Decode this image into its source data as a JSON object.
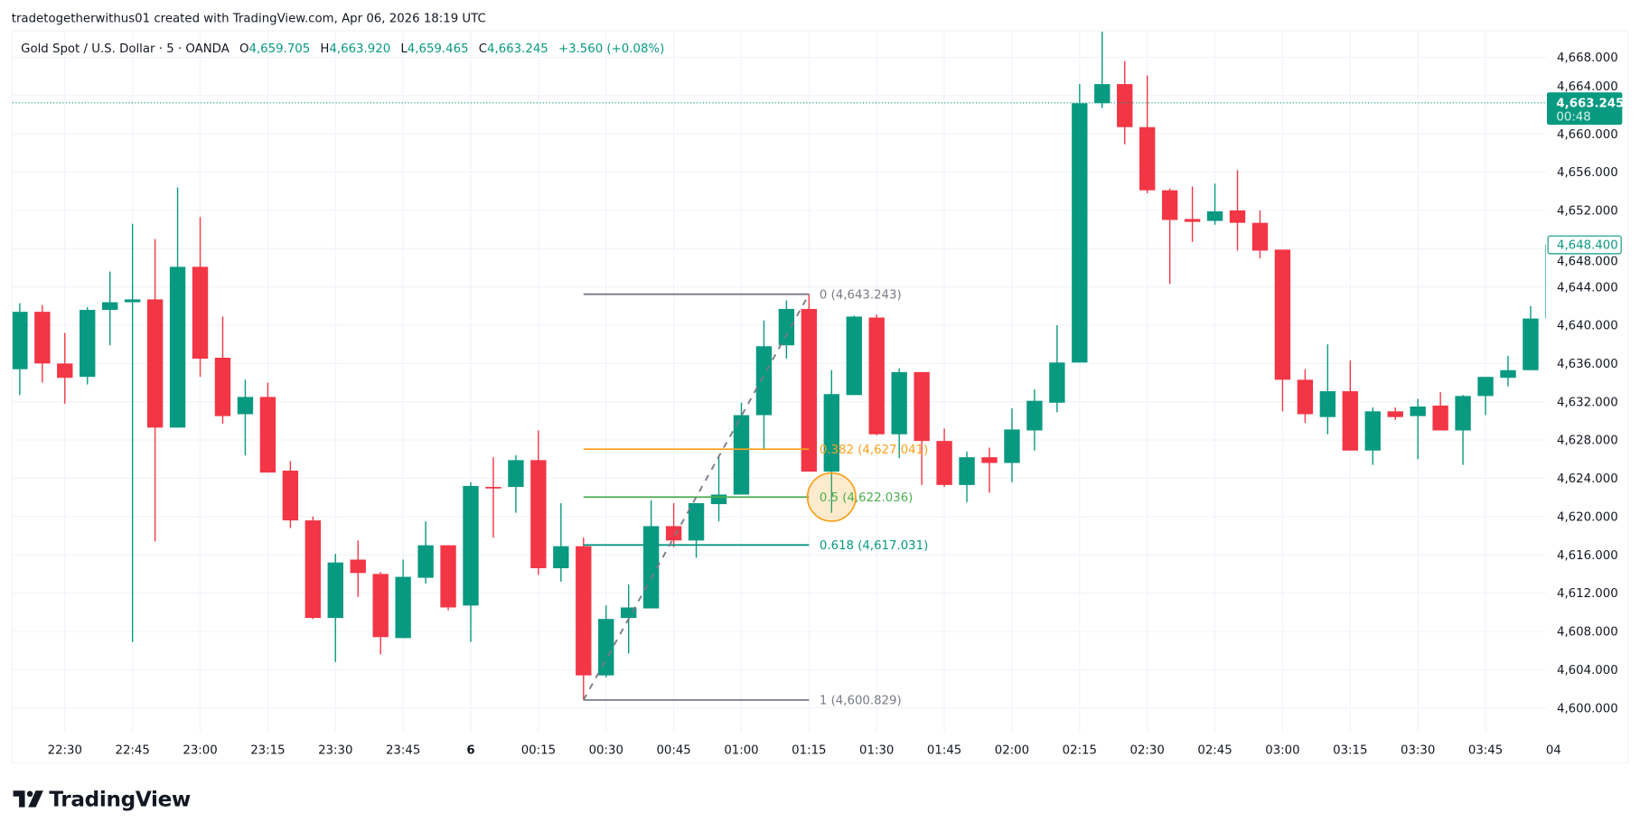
{
  "credit": "tradetogetherwithus01 created with TradingView.com, Apr 06, 2026 18:19 UTC",
  "legend": {
    "symbol": "Gold Spot / U.S. Dollar · 5 · OANDA",
    "open_label": "O",
    "open": "4,659.705",
    "high_label": "H",
    "high": "4,663.920",
    "low_label": "L",
    "low": "4,659.465",
    "close_label": "C",
    "close": "4,663.245",
    "change": "+3.560 (+0.08%)"
  },
  "logo": {
    "text": "TradingView",
    "icon": "tradingview-logo-icon"
  },
  "colors": {
    "up": "#089981",
    "down": "#f23645",
    "grid": "#f0f3fa",
    "fib_0": "#787b86",
    "fib_0382": "#f7a21b",
    "fib_05": "#4caf50",
    "fib_0618": "#089981",
    "fib_1": "#787b86",
    "highlight": "#f7a21b"
  },
  "chart_data": {
    "type": "candlestick",
    "symbol": "XAUUSD",
    "interval": "5",
    "ylim": [
      4597,
      4672
    ],
    "grid": true,
    "price_ticks": [
      "4,600.000",
      "4,604.000",
      "4,608.000",
      "4,612.000",
      "4,616.000",
      "4,620.000",
      "4,624.000",
      "4,628.000",
      "4,632.000",
      "4,636.000",
      "4,640.000",
      "4,644.000",
      "4,648.000",
      "4,652.000",
      "4,656.000",
      "4,660.000",
      "4,664.000",
      "4,668.000"
    ],
    "time_ticks": [
      {
        "label": "22:30",
        "time": "22:30"
      },
      {
        "label": "22:45",
        "time": "22:45"
      },
      {
        "label": "23:00",
        "time": "23:00"
      },
      {
        "label": "23:15",
        "time": "23:15"
      },
      {
        "label": "23:30",
        "time": "23:30"
      },
      {
        "label": "23:45",
        "time": "23:45"
      },
      {
        "label": "6",
        "time": "00:00"
      },
      {
        "label": "00:15",
        "time": "00:15"
      },
      {
        "label": "00:30",
        "time": "00:30"
      },
      {
        "label": "00:45",
        "time": "00:45"
      },
      {
        "label": "01:00",
        "time": "01:00"
      },
      {
        "label": "01:15",
        "time": "01:15"
      },
      {
        "label": "01:30",
        "time": "01:30"
      },
      {
        "label": "01:45",
        "time": "01:45"
      },
      {
        "label": "02:00",
        "time": "02:00"
      },
      {
        "label": "02:15",
        "time": "02:15"
      },
      {
        "label": "02:30",
        "time": "02:30"
      },
      {
        "label": "02:45",
        "time": "02:45"
      },
      {
        "label": "03:00",
        "time": "03:00"
      },
      {
        "label": "03:15",
        "time": "03:15"
      },
      {
        "label": "03:30",
        "time": "03:30"
      },
      {
        "label": "03:45",
        "time": "03:45"
      },
      {
        "label": "04",
        "time": "04:00"
      }
    ],
    "columns": [
      "time",
      "open",
      "high",
      "low",
      "close"
    ],
    "candles": [
      [
        "22:20",
        4635.4,
        4642.3,
        4632.7,
        4641.4
      ],
      [
        "22:25",
        4641.4,
        4642.1,
        4634.0,
        4636.0
      ],
      [
        "22:30",
        4636.0,
        4639.2,
        4631.8,
        4634.5
      ],
      [
        "22:35",
        4634.6,
        4641.9,
        4633.8,
        4641.6
      ],
      [
        "22:40",
        4641.6,
        4645.6,
        4637.9,
        4642.4
      ],
      [
        "22:45",
        4642.4,
        4650.6,
        4606.9,
        4642.7
      ],
      [
        "22:50",
        4642.7,
        4649.0,
        4617.4,
        4629.3
      ],
      [
        "22:55",
        4629.3,
        4654.4,
        4629.3,
        4646.1
      ],
      [
        "23:00",
        4646.1,
        4651.3,
        4634.6,
        4636.5
      ],
      [
        "23:05",
        4636.6,
        4640.9,
        4629.7,
        4630.5
      ],
      [
        "23:10",
        4630.7,
        4634.3,
        4626.4,
        4632.5
      ],
      [
        "23:15",
        4632.5,
        4634.0,
        4624.6,
        4624.6
      ],
      [
        "23:20",
        4624.8,
        4625.8,
        4618.8,
        4619.6
      ],
      [
        "23:25",
        4619.6,
        4620.0,
        4609.3,
        4609.4
      ],
      [
        "23:30",
        4609.4,
        4616.1,
        4604.8,
        4615.2
      ],
      [
        "23:35",
        4615.5,
        4617.5,
        4611.6,
        4614.1
      ],
      [
        "23:40",
        4614.0,
        4614.2,
        4605.6,
        4607.4
      ],
      [
        "23:45",
        4607.3,
        4615.5,
        4607.3,
        4613.7
      ],
      [
        "23:50",
        4613.6,
        4619.5,
        4613.0,
        4617.0
      ],
      [
        "23:55",
        4617.0,
        4617.0,
        4610.2,
        4610.5
      ],
      [
        "00:00",
        4610.7,
        4623.6,
        4606.9,
        4623.2
      ],
      [
        "00:05",
        4623.1,
        4626.2,
        4617.8,
        4623.0
      ],
      [
        "00:10",
        4623.1,
        4626.4,
        4620.4,
        4625.9
      ],
      [
        "00:15",
        4625.9,
        4629.0,
        4613.9,
        4614.6
      ],
      [
        "00:20",
        4614.6,
        4621.4,
        4613.2,
        4616.9
      ],
      [
        "00:25",
        4616.9,
        4617.8,
        4600.829,
        4603.4
      ],
      [
        "00:30",
        4603.4,
        4610.7,
        4603.2,
        4609.3
      ],
      [
        "00:35",
        4609.4,
        4612.9,
        4605.7,
        4610.5
      ],
      [
        "00:40",
        4610.4,
        4621.7,
        4610.4,
        4619.0
      ],
      [
        "00:45",
        4619.0,
        4621.4,
        4616.8,
        4617.5
      ],
      [
        "00:50",
        4617.5,
        4621.4,
        4615.7,
        4621.4
      ],
      [
        "00:55",
        4621.3,
        4626.2,
        4619.5,
        4622.3
      ],
      [
        "01:00",
        4622.3,
        4631.9,
        4622.3,
        4630.6
      ],
      [
        "01:05",
        4630.6,
        4640.5,
        4627.1,
        4637.8
      ],
      [
        "01:10",
        4637.9,
        4642.6,
        4636.5,
        4641.7
      ],
      [
        "01:15",
        4641.7,
        4643.243,
        4624.7,
        4624.7
      ],
      [
        "01:20",
        4624.7,
        4635.3,
        4620.4,
        4632.8
      ],
      [
        "01:25",
        4632.7,
        4641.0,
        4632.7,
        4640.9
      ],
      [
        "01:30",
        4640.8,
        4641.1,
        4628.5,
        4628.6
      ],
      [
        "01:35",
        4628.6,
        4635.5,
        4626.1,
        4635.1
      ],
      [
        "01:40",
        4635.1,
        4635.1,
        4623.3,
        4627.9
      ],
      [
        "01:45",
        4627.9,
        4629.2,
        4623.1,
        4623.3
      ],
      [
        "01:50",
        4623.3,
        4626.8,
        4621.5,
        4626.2
      ],
      [
        "01:55",
        4626.2,
        4627.2,
        4622.5,
        4625.6
      ],
      [
        "02:00",
        4625.6,
        4631.3,
        4623.6,
        4629.1
      ],
      [
        "02:05",
        4629.0,
        4633.3,
        4626.9,
        4632.1
      ],
      [
        "02:10",
        4631.9,
        4640.0,
        4630.9,
        4636.1
      ],
      [
        "02:15",
        4636.1,
        4665.2,
        4636.1,
        4663.2
      ],
      [
        "02:20",
        4663.2,
        4670.7,
        4662.7,
        4665.2
      ],
      [
        "02:25",
        4665.2,
        4667.6,
        4658.9,
        4660.7
      ],
      [
        "02:30",
        4660.7,
        4666.1,
        4653.8,
        4654.1
      ],
      [
        "02:35",
        4654.1,
        4654.3,
        4644.3,
        4651.0
      ],
      [
        "02:40",
        4651.1,
        4654.5,
        4648.7,
        4650.8
      ],
      [
        "02:45",
        4650.9,
        4654.8,
        4650.5,
        4651.9
      ],
      [
        "02:50",
        4652.0,
        4656.2,
        4647.8,
        4650.7
      ],
      [
        "02:55",
        4650.7,
        4652.0,
        4647.0,
        4647.8
      ],
      [
        "03:00",
        4647.9,
        4647.9,
        4631.0,
        4634.3
      ],
      [
        "03:05",
        4634.3,
        4635.4,
        4629.8,
        4630.7
      ],
      [
        "03:10",
        4630.4,
        4638.0,
        4628.6,
        4633.1
      ],
      [
        "03:15",
        4633.1,
        4636.3,
        4626.9,
        4626.9
      ],
      [
        "03:20",
        4626.9,
        4631.4,
        4625.4,
        4631.0
      ],
      [
        "03:25",
        4631.0,
        4631.4,
        4630.1,
        4630.4
      ],
      [
        "03:30",
        4630.5,
        4632.3,
        4626.0,
        4631.5
      ],
      [
        "03:35",
        4631.6,
        4633.0,
        4629.0,
        4629.0
      ],
      [
        "03:40",
        4629.0,
        4632.7,
        4625.4,
        4632.6
      ],
      [
        "03:45",
        4632.6,
        4634.6,
        4630.6,
        4634.6
      ],
      [
        "03:50",
        4634.5,
        4636.8,
        4633.6,
        4635.3
      ],
      [
        "03:55",
        4635.3,
        4642.0,
        4635.3,
        4640.7
      ],
      [
        "04:00",
        4640.7,
        4648.4,
        4640.7,
        4648.4
      ]
    ],
    "fib_retracement": {
      "start": {
        "time": "00:25",
        "price": 4600.829
      },
      "end": {
        "time": "01:15",
        "price": 4643.243
      },
      "levels": [
        {
          "level": "0",
          "price": 4643.243,
          "label": "0 (4,643.243)",
          "color": "#787b86"
        },
        {
          "level": "0.382",
          "price": 4627.041,
          "label": "0.382 (4,627.041)",
          "color": "#f7a21b"
        },
        {
          "level": "0.5",
          "price": 4622.036,
          "label": "0.5 (4,622.036)",
          "color": "#4caf50"
        },
        {
          "level": "0.618",
          "price": 4617.031,
          "label": "0.618 (4,617.031)",
          "color": "#089981"
        },
        {
          "level": "1",
          "price": 4600.829,
          "label": "1 (4,600.829)",
          "color": "#787b86"
        }
      ]
    },
    "highlight_circle": {
      "time": "01:20",
      "price": 4622.036
    },
    "last_price": {
      "price": 4663.245,
      "label": "4,663.245",
      "countdown": "00:48"
    },
    "price_marker": {
      "price": 4648.4,
      "label": "4,648.400"
    }
  }
}
